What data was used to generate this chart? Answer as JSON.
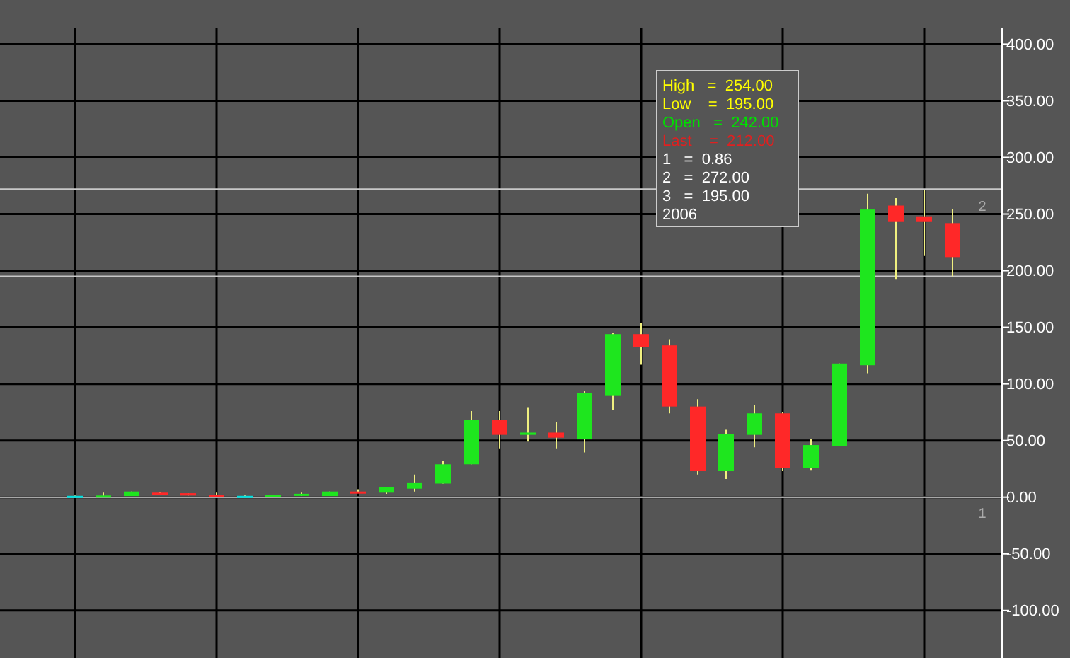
{
  "chart_data": {
    "type": "candlestick",
    "categories": [
      null,
      null,
      null,
      null,
      null,
      null,
      null,
      null,
      null,
      null,
      null,
      null,
      null,
      null,
      null,
      null,
      null,
      null,
      null,
      null,
      null,
      null,
      null,
      null,
      null,
      null,
      null,
      null,
      null,
      null,
      null,
      null
    ],
    "ohlc": [
      [
        1,
        1.5,
        0.5,
        1.2
      ],
      [
        1,
        4,
        0,
        1.5
      ],
      [
        1,
        5,
        1,
        5
      ],
      [
        4,
        4.5,
        2.5,
        2.5
      ],
      [
        3.5,
        3.5,
        1.5,
        1.5
      ],
      [
        2,
        4,
        0,
        1
      ],
      [
        1,
        1.5,
        1,
        1.2
      ],
      [
        1.5,
        2,
        1.5,
        2
      ],
      [
        1.5,
        4,
        1,
        3
      ],
      [
        1,
        5,
        1,
        5
      ],
      [
        5,
        7,
        4,
        4
      ],
      [
        4,
        9,
        3,
        9
      ],
      [
        7.5,
        20,
        5,
        13
      ],
      [
        12,
        32,
        12,
        29
      ],
      [
        29,
        76,
        29,
        68.5
      ],
      [
        68.5,
        76,
        43,
        55
      ],
      [
        55,
        79.5,
        49,
        57
      ],
      [
        57,
        66,
        43,
        52.5
      ],
      [
        51,
        94,
        39.5,
        92
      ],
      [
        90,
        145,
        77,
        144
      ],
      [
        144,
        154,
        117,
        132.5
      ],
      [
        134,
        139.5,
        74,
        80
      ],
      [
        80,
        86.5,
        20,
        23
      ],
      [
        23,
        59.5,
        16,
        56
      ],
      [
        55,
        81,
        44,
        74
      ],
      [
        74,
        75,
        23,
        26
      ],
      [
        26,
        51,
        24,
        46
      ],
      [
        45,
        118,
        45,
        118
      ],
      [
        116.5,
        268,
        109.5,
        254
      ],
      [
        257.5,
        264,
        192,
        243
      ],
      [
        248,
        271,
        213,
        243
      ],
      [
        242,
        254,
        195,
        212
      ]
    ],
    "colors": [
      "#00e0e0",
      "#1ee61e",
      "#1ee61e",
      "#ff2828",
      "#ff2828",
      "#ff2828",
      "#00e0e0",
      "#1ee61e",
      "#1ee61e",
      "#1ee61e",
      "#ff2828",
      "#1ee61e",
      "#1ee61e",
      "#1ee61e",
      "#1ee61e",
      "#ff2828",
      "#1ee61e",
      "#ff2828",
      "#1ee61e",
      "#1ee61e",
      "#ff2828",
      "#ff2828",
      "#ff2828",
      "#1ee61e",
      "#1ee61e",
      "#ff2828",
      "#1ee61e",
      "#1ee61e",
      "#1ee61e",
      "#ff2828",
      "#ff2828",
      "#ff2828"
    ],
    "ylim": [
      -142,
      414
    ],
    "yticks": [
      {
        "value": -100,
        "label": "-100.00"
      },
      {
        "value": -50,
        "label": "-50.00"
      },
      {
        "value": 0,
        "label": "0.00"
      },
      {
        "value": 50,
        "label": "50.00"
      },
      {
        "value": 100,
        "label": "100.00"
      },
      {
        "value": 150,
        "label": "150.00"
      },
      {
        "value": 200,
        "label": "200.00"
      },
      {
        "value": 250,
        "label": "250.00"
      },
      {
        "value": 300,
        "label": "300.00"
      },
      {
        "value": 350,
        "label": "350.00"
      },
      {
        "value": 400,
        "label": "400.00"
      }
    ],
    "grid": true,
    "tick_labels": "y",
    "ref_lines": [
      {
        "axis": "y",
        "value": 272,
        "color": "#c8c8c8"
      },
      {
        "axis": "y",
        "value": 195,
        "color": "#c8c8c8"
      },
      {
        "axis": "y",
        "value": 0,
        "color": "#e0e0e0"
      }
    ],
    "annotations": [
      "High   =  254.00",
      "Low    =  195.00",
      "Open   =  242.00",
      "Last    =  212.00",
      "1   =  0.86",
      "2   =  272.00",
      "3   =  195.00",
      "2006",
      "2",
      "1"
    ]
  }
}
